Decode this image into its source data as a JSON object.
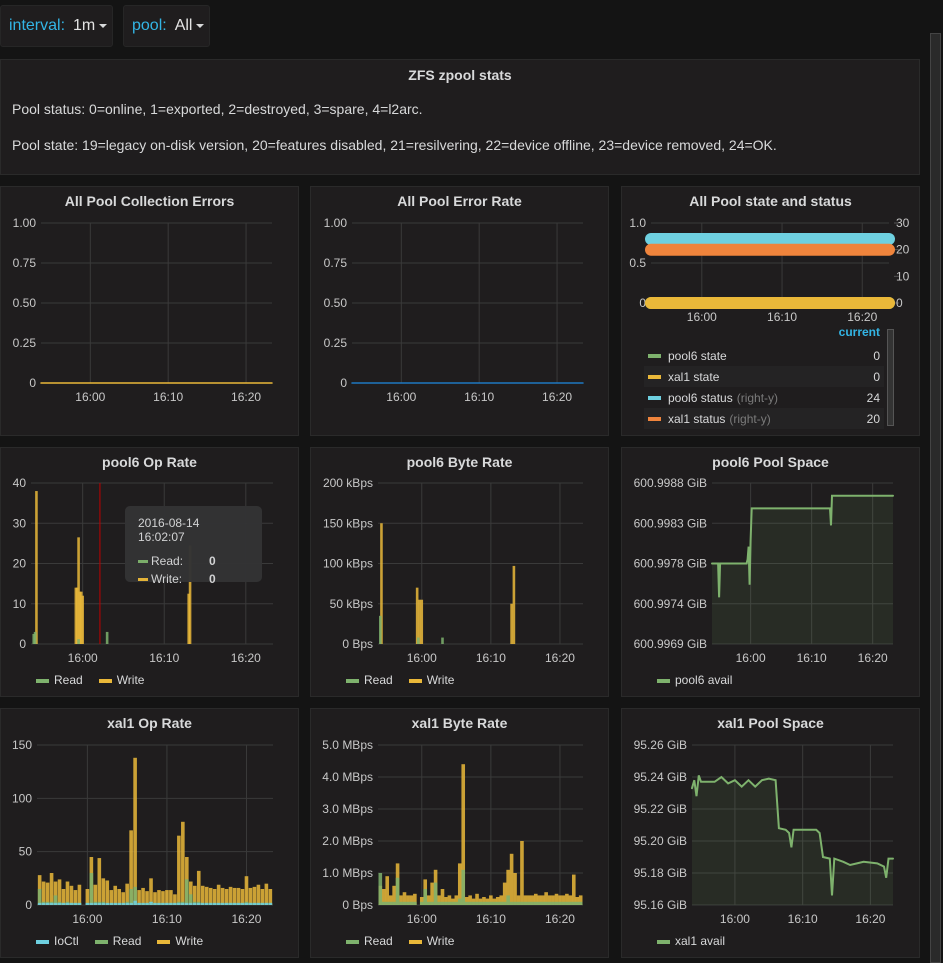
{
  "variables": [
    {
      "label": "interval:",
      "value": "1m"
    },
    {
      "label": "pool:",
      "value": "All"
    }
  ],
  "text_panel": {
    "title": "ZFS zpool stats",
    "lines": [
      "Pool status: 0=online, 1=exported, 2=destroyed, 3=spare, 4=l2arc.",
      "Pool state: 19=legacy on-disk version, 20=features disabled, 21=resilvering, 22=device offline, 23=device removed, 24=OK."
    ]
  },
  "colors": {
    "green": "#7eb26d",
    "yellow": "#eab839",
    "cyan": "#6ed0e0",
    "orange": "#ef843c",
    "blue": "#1f78c1",
    "crosshair": "#c00000"
  },
  "xlim": [
    "15:53:40",
    "16:23:20"
  ],
  "x_ticks": [
    "16:00",
    "16:10",
    "16:20"
  ],
  "panels": [
    {
      "title": "All Pool Collection Errors",
      "type": "line",
      "ylim": [
        0,
        1
      ],
      "y_ticks": [
        "0",
        "0.25",
        "0.50",
        "0.75",
        "1.00"
      ],
      "series": [
        {
          "color": "#eab839",
          "points": [
            [
              "15:53:40",
              0
            ],
            [
              "16:23:20",
              0
            ]
          ]
        }
      ]
    },
    {
      "title": "All Pool Error Rate",
      "type": "line",
      "ylim": [
        0,
        1
      ],
      "y_ticks": [
        "0",
        "0.25",
        "0.50",
        "0.75",
        "1.00"
      ],
      "series": [
        {
          "color": "#1f78c1",
          "points": [
            [
              "15:53:40",
              0
            ],
            [
              "16:23:20",
              0
            ]
          ]
        }
      ]
    },
    {
      "title": "All Pool state and status",
      "type": "thick",
      "ylim": [
        0,
        1
      ],
      "y_ticks": [
        "0",
        "0.5",
        "1.0"
      ],
      "ylim_right": [
        0,
        30
      ],
      "y_ticks_right": [
        "0",
        "10",
        "20",
        "30"
      ],
      "series": [
        {
          "name": "pool6 state",
          "color": "#7eb26d",
          "axis": "left",
          "current": "0",
          "points": [
            [
              "15:53:40",
              0
            ],
            [
              "16:23:20",
              0
            ]
          ]
        },
        {
          "name": "xal1 state",
          "color": "#eab839",
          "axis": "left",
          "current": "0",
          "points": [
            [
              "15:53:40",
              0
            ],
            [
              "16:23:20",
              0
            ]
          ]
        },
        {
          "name": "pool6 status",
          "color": "#6ed0e0",
          "axis": "right",
          "right_label": "(right-y)",
          "current": "24",
          "points": [
            [
              "15:53:40",
              24
            ],
            [
              "16:23:20",
              24
            ]
          ]
        },
        {
          "name": "xal1 status",
          "color": "#ef843c",
          "axis": "right",
          "right_label": "(right-y)",
          "current": "20",
          "points": [
            [
              "15:53:40",
              20
            ],
            [
              "16:23:20",
              20
            ]
          ]
        }
      ],
      "legend_header": "current"
    },
    {
      "title": "pool6 Op Rate",
      "type": "bar",
      "ylim": [
        0,
        40
      ],
      "y_ticks": [
        "0",
        "10",
        "20",
        "30",
        "40"
      ],
      "series": [
        {
          "name": "Write",
          "color": "#eab839",
          "points": [
            [
              "15:54:20",
              38
            ],
            [
              "15:59:10",
              14
            ],
            [
              "15:59:20",
              14
            ],
            [
              "15:59:30",
              26.5
            ],
            [
              "15:59:40",
              13
            ],
            [
              "15:59:50",
              13
            ],
            [
              "16:00:00",
              12
            ],
            [
              "16:13:00",
              12.5
            ],
            [
              "16:13:10",
              24.5
            ]
          ]
        },
        {
          "name": "Read",
          "color": "#7eb26d",
          "points": [
            [
              "15:54:00",
              2.5
            ],
            [
              "15:54:10",
              3
            ],
            [
              "15:59:30",
              1.2
            ],
            [
              "16:03:00",
              3
            ]
          ]
        }
      ],
      "legend": [
        "Read",
        "Write"
      ],
      "crosshair": "16:02:07",
      "tooltip": {
        "time": "2016-08-14 16:02:07",
        "rows": [
          {
            "name": "Read:",
            "value": "0",
            "color": "#7eb26d"
          },
          {
            "name": "Write:",
            "value": "0",
            "color": "#eab839"
          }
        ]
      }
    },
    {
      "title": "pool6 Byte Rate",
      "type": "bar",
      "ylim": [
        0,
        200
      ],
      "y_ticks": [
        "0 Bps",
        "50 kBps",
        "100 kBps",
        "150 kBps",
        "200 kBps"
      ],
      "series": [
        {
          "name": "Write",
          "color": "#eab839",
          "points": [
            [
              "15:54:10",
              150
            ],
            [
              "15:59:20",
              70
            ],
            [
              "15:59:40",
              55
            ],
            [
              "16:00:00",
              55
            ],
            [
              "16:13:00",
              50
            ],
            [
              "16:13:20",
              97
            ]
          ]
        },
        {
          "name": "Read",
          "color": "#7eb26d",
          "points": [
            [
              "15:54:00",
              35
            ],
            [
              "15:59:30",
              8
            ],
            [
              "16:03:00",
              8
            ]
          ]
        }
      ],
      "legend": [
        "Read",
        "Write"
      ]
    },
    {
      "title": "pool6 Pool Space",
      "type": "area",
      "ylim": [
        600.9969,
        600.9988
      ],
      "y_ticks": [
        "600.9969 GiB",
        "600.9974 GiB",
        "600.9978 GiB",
        "600.9983 GiB",
        "600.9988 GiB"
      ],
      "series": [
        {
          "name": "pool6 avail",
          "color": "#7eb26d",
          "points": [
            [
              "15:53:40",
              600.99785
            ],
            [
              "15:54:40",
              600.99785
            ],
            [
              "15:54:50",
              600.99745
            ],
            [
              "15:55:00",
              600.99785
            ],
            [
              "15:59:20",
              600.99785
            ],
            [
              "15:59:30",
              600.9979
            ],
            [
              "15:59:40",
              600.99805
            ],
            [
              "15:59:50",
              600.9976
            ],
            [
              "16:00:00",
              600.99812
            ],
            [
              "16:00:10",
              600.9985
            ],
            [
              "16:13:00",
              600.9985
            ],
            [
              "16:13:10",
              600.9983
            ],
            [
              "16:13:20",
              600.99865
            ],
            [
              "16:23:20",
              600.99865
            ]
          ]
        }
      ],
      "legend": [
        "pool6 avail"
      ]
    },
    {
      "title": "xal1 Op Rate",
      "type": "bar",
      "ylim": [
        0,
        150
      ],
      "y_ticks": [
        "0",
        "50",
        "100",
        "150"
      ],
      "times_start": "15:54:00",
      "times_step_s": 30,
      "series": [
        {
          "name": "Write",
          "color": "#eab839",
          "values": [
            28,
            22,
            21,
            30,
            22,
            24,
            15,
            22,
            18,
            14,
            19,
            0,
            15,
            45,
            19,
            44,
            25,
            23,
            14,
            18,
            15,
            12,
            20,
            70,
            138,
            14,
            16,
            13,
            25,
            12,
            14,
            13,
            14,
            14,
            10,
            65,
            78,
            45,
            22,
            18,
            32,
            18,
            17,
            16,
            15,
            19,
            16,
            15,
            17,
            16,
            16,
            15,
            27,
            16,
            17,
            19,
            15,
            20,
            15
          ]
        },
        {
          "name": "Read",
          "color": "#7eb26d",
          "values": [
            15,
            3,
            3,
            3,
            9,
            3,
            2,
            3,
            2,
            2,
            2,
            0,
            2,
            30,
            3,
            3,
            3,
            2,
            2,
            2,
            2,
            2,
            3,
            15,
            17,
            2,
            2,
            2,
            3,
            2,
            2,
            2,
            2,
            2,
            2,
            3,
            3,
            24,
            10,
            3,
            3,
            2,
            2,
            2,
            2,
            2,
            2,
            2,
            2,
            2,
            2,
            2,
            3,
            2,
            2,
            2,
            2,
            2,
            2
          ]
        },
        {
          "name": "IoCtl",
          "color": "#6ed0e0",
          "values": [
            2,
            2,
            2,
            2,
            2,
            2,
            2,
            2,
            2,
            2,
            2,
            0,
            2,
            2,
            2,
            2,
            2,
            2,
            2,
            2,
            2,
            2,
            2,
            2,
            4,
            2,
            2,
            2,
            3,
            2,
            2,
            2,
            2,
            2,
            2,
            2,
            2,
            2,
            2,
            2,
            2,
            2,
            2,
            2,
            2,
            2,
            2,
            2,
            2,
            2,
            2,
            2,
            2,
            2,
            2,
            2,
            2,
            2,
            2
          ]
        }
      ],
      "legend": [
        "IoCtl",
        "Read",
        "Write"
      ]
    },
    {
      "title": "xal1 Byte Rate",
      "type": "bar",
      "ylim": [
        0,
        5
      ],
      "y_ticks": [
        "0 Bps",
        "1.0 MBps",
        "2.0 MBps",
        "3.0 MBps",
        "4.0 MBps",
        "5.0 MBps"
      ],
      "times_start": "15:54:00",
      "times_step_s": 30,
      "series": [
        {
          "name": "Write",
          "color": "#eab839",
          "values": [
            0.6,
            0.5,
            0.9,
            0.3,
            0.6,
            1.3,
            0.3,
            0.4,
            0.3,
            0.3,
            0.35,
            0,
            0.25,
            0.8,
            0.3,
            0.7,
            1.1,
            0.3,
            0.5,
            0.25,
            0.3,
            0.2,
            0.3,
            1.3,
            4.4,
            0.25,
            0.3,
            0.2,
            0.35,
            0.2,
            0.25,
            0.2,
            0.3,
            0.2,
            0.25,
            0.3,
            0.7,
            1.1,
            1.6,
            1.0,
            0.3,
            2.0,
            0.3,
            0.3,
            0.3,
            0.35,
            0.3,
            0.3,
            0.4,
            0.3,
            0.3,
            0.35,
            0.3,
            0.3,
            0.35,
            0.3,
            0.95,
            0.25,
            0.3
          ]
        },
        {
          "name": "Read",
          "color": "#7eb26d",
          "values": [
            1.0,
            0.1,
            0.1,
            0.1,
            0.1,
            0.85,
            0.1,
            0.1,
            0.1,
            0.1,
            0.1,
            0,
            0.1,
            0.5,
            0.1,
            0.1,
            0.7,
            0.1,
            0.1,
            0.1,
            0.1,
            0.1,
            0.1,
            0.2,
            1.1,
            0.1,
            0.1,
            0.1,
            0.1,
            0.1,
            0.1,
            0.1,
            0.1,
            0.1,
            0.1,
            0.1,
            0.1,
            0.3,
            0.1,
            0.1,
            0.1,
            0.1,
            0.1,
            0.1,
            0.1,
            0.1,
            0.1,
            0.1,
            0.1,
            0.1,
            0.1,
            0.1,
            0.1,
            0.1,
            0.1,
            0.1,
            0.1,
            0.1,
            0.1
          ]
        }
      ],
      "legend": [
        "Read",
        "Write"
      ]
    },
    {
      "title": "xal1 Pool Space",
      "type": "area",
      "ylim": [
        95.16,
        95.26
      ],
      "y_ticks": [
        "95.16 GiB",
        "95.18 GiB",
        "95.20 GiB",
        "95.22 GiB",
        "95.24 GiB",
        "95.26 GiB"
      ],
      "series": [
        {
          "name": "xal1 avail",
          "color": "#7eb26d",
          "points": [
            [
              "15:53:40",
              95.233
            ],
            [
              "15:54:00",
              95.238
            ],
            [
              "15:54:20",
              95.228
            ],
            [
              "15:54:40",
              95.241
            ],
            [
              "15:55:00",
              95.237
            ],
            [
              "15:57:00",
              95.237
            ],
            [
              "15:58:00",
              95.24
            ],
            [
              "15:59:00",
              95.236
            ],
            [
              "16:00:00",
              95.238
            ],
            [
              "16:01:00",
              95.234
            ],
            [
              "16:02:00",
              95.238
            ],
            [
              "16:03:00",
              95.234
            ],
            [
              "16:04:00",
              95.238
            ],
            [
              "16:05:00",
              95.239
            ],
            [
              "16:06:00",
              95.238
            ],
            [
              "16:06:30",
              95.208
            ],
            [
              "16:07:30",
              95.207
            ],
            [
              "16:08:00",
              95.205
            ],
            [
              "16:08:20",
              95.196
            ],
            [
              "16:08:40",
              95.207
            ],
            [
              "16:12:00",
              95.207
            ],
            [
              "16:12:30",
              95.205
            ],
            [
              "16:13:00",
              95.19
            ],
            [
              "16:14:00",
              95.189
            ],
            [
              "16:14:20",
              95.166
            ],
            [
              "16:14:40",
              95.189
            ],
            [
              "16:16:00",
              95.187
            ],
            [
              "16:17:00",
              95.185
            ],
            [
              "16:18:00",
              95.186
            ],
            [
              "16:19:00",
              95.187
            ],
            [
              "16:21:00",
              95.186
            ],
            [
              "16:22:00",
              95.184
            ],
            [
              "16:22:20",
              95.177
            ],
            [
              "16:22:40",
              95.189
            ],
            [
              "16:23:20",
              95.189
            ]
          ]
        }
      ],
      "legend": [
        "xal1 avail"
      ]
    }
  ]
}
